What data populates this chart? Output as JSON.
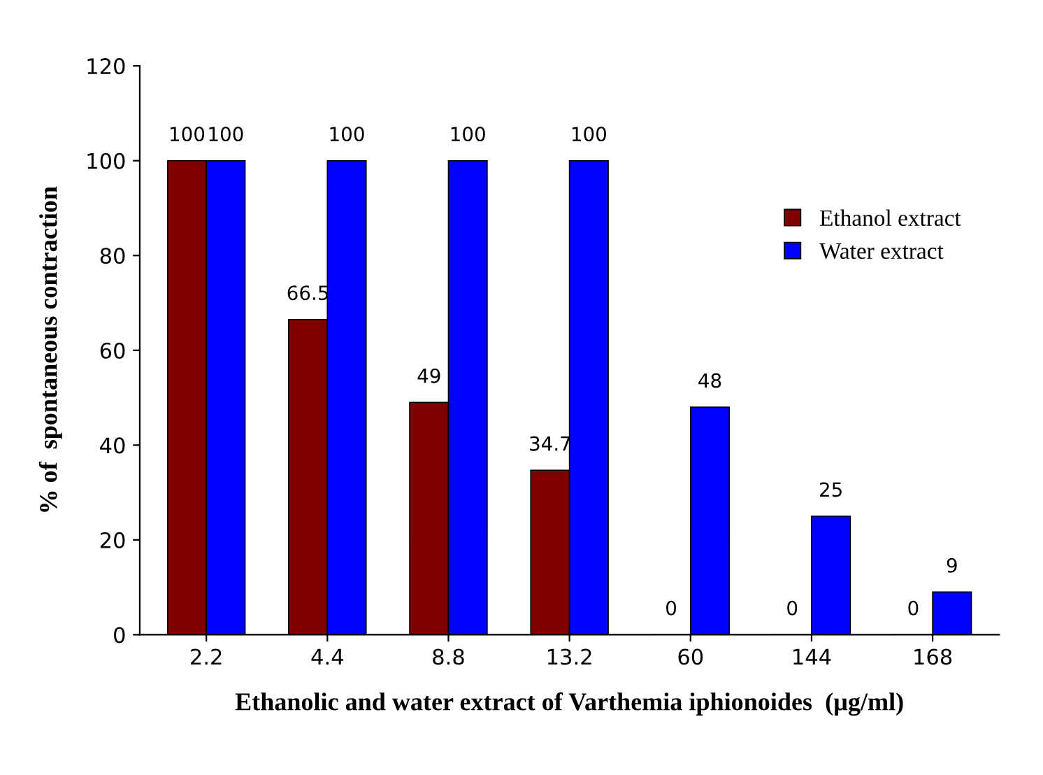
{
  "chart_data": {
    "type": "bar",
    "xlabel": "Ethanolic and water extract of Varthemia iphionoides  (µg/ml)",
    "ylabel": "% of  spontaneous contraction",
    "categories": [
      "2.2",
      "4.4",
      "8.8",
      "13.2",
      "60",
      "144",
      "168"
    ],
    "series": [
      {
        "name": "Ethanol extract",
        "color": "#800000",
        "values": [
          100,
          66.5,
          49,
          34.7,
          0,
          0,
          0
        ]
      },
      {
        "name": "Water extract",
        "color": "#0000ff",
        "values": [
          100,
          100,
          100,
          100,
          48,
          25,
          9
        ]
      }
    ],
    "ylim": [
      0,
      120
    ],
    "yticks": [
      0,
      20,
      40,
      60,
      80,
      100,
      120
    ],
    "data_labels": true,
    "grid": false,
    "legend": "right"
  }
}
